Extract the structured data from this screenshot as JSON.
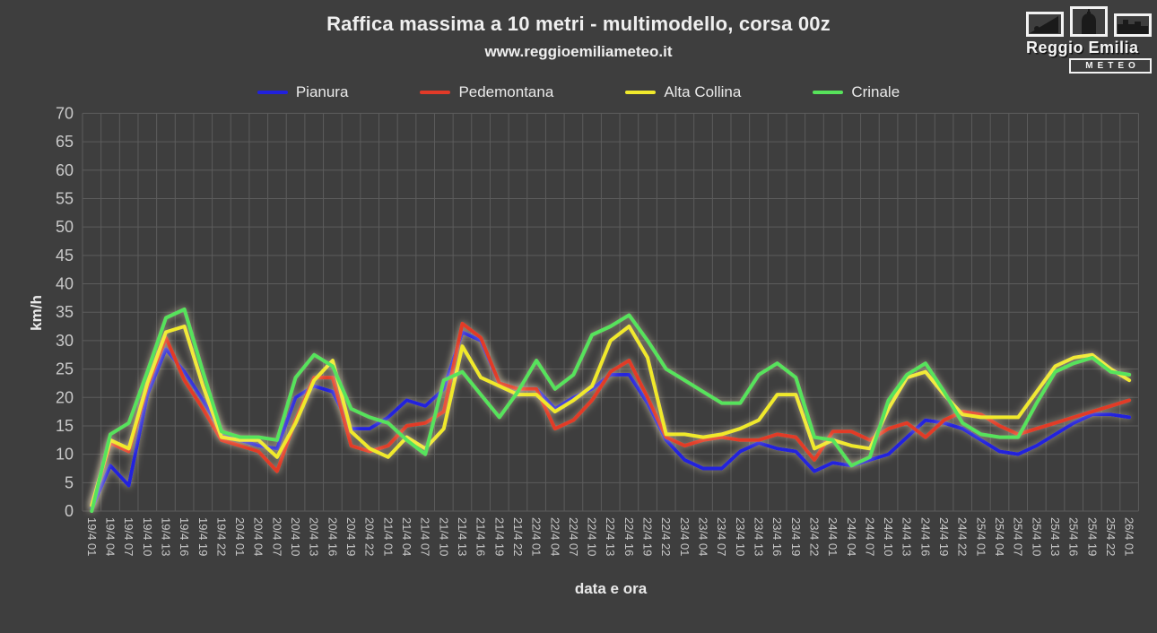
{
  "title": "Raffica massima a 10 metri - multimodello, corsa 00z",
  "subtitle": "www.reggioemiliameteo.it",
  "logo": {
    "name": "Reggio Emilia",
    "sub": "METEO"
  },
  "chart_data": {
    "type": "line",
    "title": "Raffica massima a 10 metri - multimodello, corsa 00z",
    "subtitle": "www.reggioemiliameteo.it",
    "xlabel": "data e ora",
    "ylabel": "km/h",
    "ylim": [
      0,
      70
    ],
    "ytick_step": 5,
    "grid": true,
    "legend_position": "top",
    "x_labels": [
      "19/4 01",
      "19/4 04",
      "19/4 07",
      "19/4 10",
      "19/4 13",
      "19/4 16",
      "19/4 19",
      "19/4 22",
      "20/4 01",
      "20/4 04",
      "20/4 07",
      "20/4 10",
      "20/4 13",
      "20/4 16",
      "20/4 19",
      "20/4 22",
      "21/4 01",
      "21/4 04",
      "21/4 07",
      "21/4 10",
      "21/4 13",
      "21/4 16",
      "21/4 19",
      "21/4 22",
      "22/4 01",
      "22/4 04",
      "22/4 07",
      "22/4 10",
      "22/4 13",
      "22/4 16",
      "22/4 19",
      "22/4 22",
      "23/4 01",
      "23/4 04",
      "23/4 07",
      "23/4 10",
      "23/4 13",
      "23/4 16",
      "23/4 19",
      "23/4 22",
      "24/4 01",
      "24/4 04",
      "24/4 07",
      "24/4 10",
      "24/4 13",
      "24/4 16",
      "24/4 19",
      "24/4 22",
      "25/4 01",
      "25/4 04",
      "25/4 07",
      "25/4 10",
      "25/4 13",
      "25/4 16",
      "25/4 19",
      "25/4 22",
      "26/4 01"
    ],
    "series": [
      {
        "name": "Pianura",
        "color": "#2020dd",
        "values": [
          0.5,
          8,
          4.5,
          20.5,
          28.5,
          24.5,
          19.5,
          14,
          12.5,
          11.5,
          11,
          20,
          22,
          21,
          14.5,
          14.5,
          16.5,
          19.5,
          18.5,
          21.5,
          31.5,
          30,
          22.5,
          21.5,
          21.5,
          18,
          20,
          21.5,
          24,
          24,
          19,
          12.5,
          9,
          7.5,
          7.5,
          10.5,
          12,
          11,
          10.5,
          7,
          8.5,
          8,
          9,
          10,
          13,
          16,
          15.5,
          14.5,
          12.5,
          10.5,
          10,
          11.5,
          13.5,
          15.5,
          17,
          17,
          16.5
        ]
      },
      {
        "name": "Pedemontana",
        "color": "#e23a28",
        "values": [
          1,
          12,
          10.5,
          22,
          30.5,
          23,
          18,
          12.5,
          11.5,
          10.5,
          7,
          16,
          23.5,
          23.5,
          11.5,
          10.5,
          11.5,
          15,
          15.5,
          17.5,
          33,
          30.5,
          22.5,
          21.5,
          21.5,
          14.5,
          16,
          19.5,
          24.5,
          26.5,
          20,
          13,
          11.5,
          12.5,
          13,
          12.5,
          12.5,
          13.5,
          13,
          9,
          14,
          14,
          12.5,
          14.5,
          15.5,
          13,
          16,
          17.5,
          17,
          15,
          13.5,
          14.5,
          15.5,
          16.5,
          17.5,
          18.5,
          19.5
        ]
      },
      {
        "name": "Alta Collina",
        "color": "#f0e92c",
        "values": [
          1,
          12.5,
          11,
          22.5,
          31.5,
          32.5,
          22,
          13,
          12.5,
          12.5,
          9.5,
          15.5,
          23,
          26.5,
          14,
          11,
          9.5,
          13,
          11,
          14.5,
          29,
          23.5,
          22,
          20.5,
          20.5,
          17.5,
          19.5,
          22,
          30,
          32.5,
          27,
          13.5,
          13.5,
          13,
          13.5,
          14.5,
          16,
          20.5,
          20.5,
          11,
          12.5,
          11.5,
          11,
          18,
          23.5,
          24.5,
          20.5,
          17,
          16.5,
          16.5,
          16.5,
          21,
          25.5,
          27,
          27.5,
          25,
          23
        ]
      },
      {
        "name": "Crinale",
        "color": "#57e35b",
        "values": [
          0,
          13.5,
          15.5,
          24.5,
          34,
          35.5,
          24.5,
          14,
          13,
          13,
          12.5,
          23.5,
          27.5,
          25.5,
          18,
          16.5,
          15.5,
          12.5,
          10,
          23,
          24.5,
          20.5,
          16.5,
          21,
          26.5,
          21.5,
          24,
          31,
          32.5,
          34.5,
          30,
          25,
          23,
          21,
          19,
          19,
          24,
          26,
          23.5,
          13,
          12.5,
          8,
          9.5,
          19.5,
          24,
          26,
          21,
          15.5,
          13.5,
          13,
          13,
          19,
          24.5,
          26,
          27,
          24.5,
          24
        ]
      }
    ]
  }
}
